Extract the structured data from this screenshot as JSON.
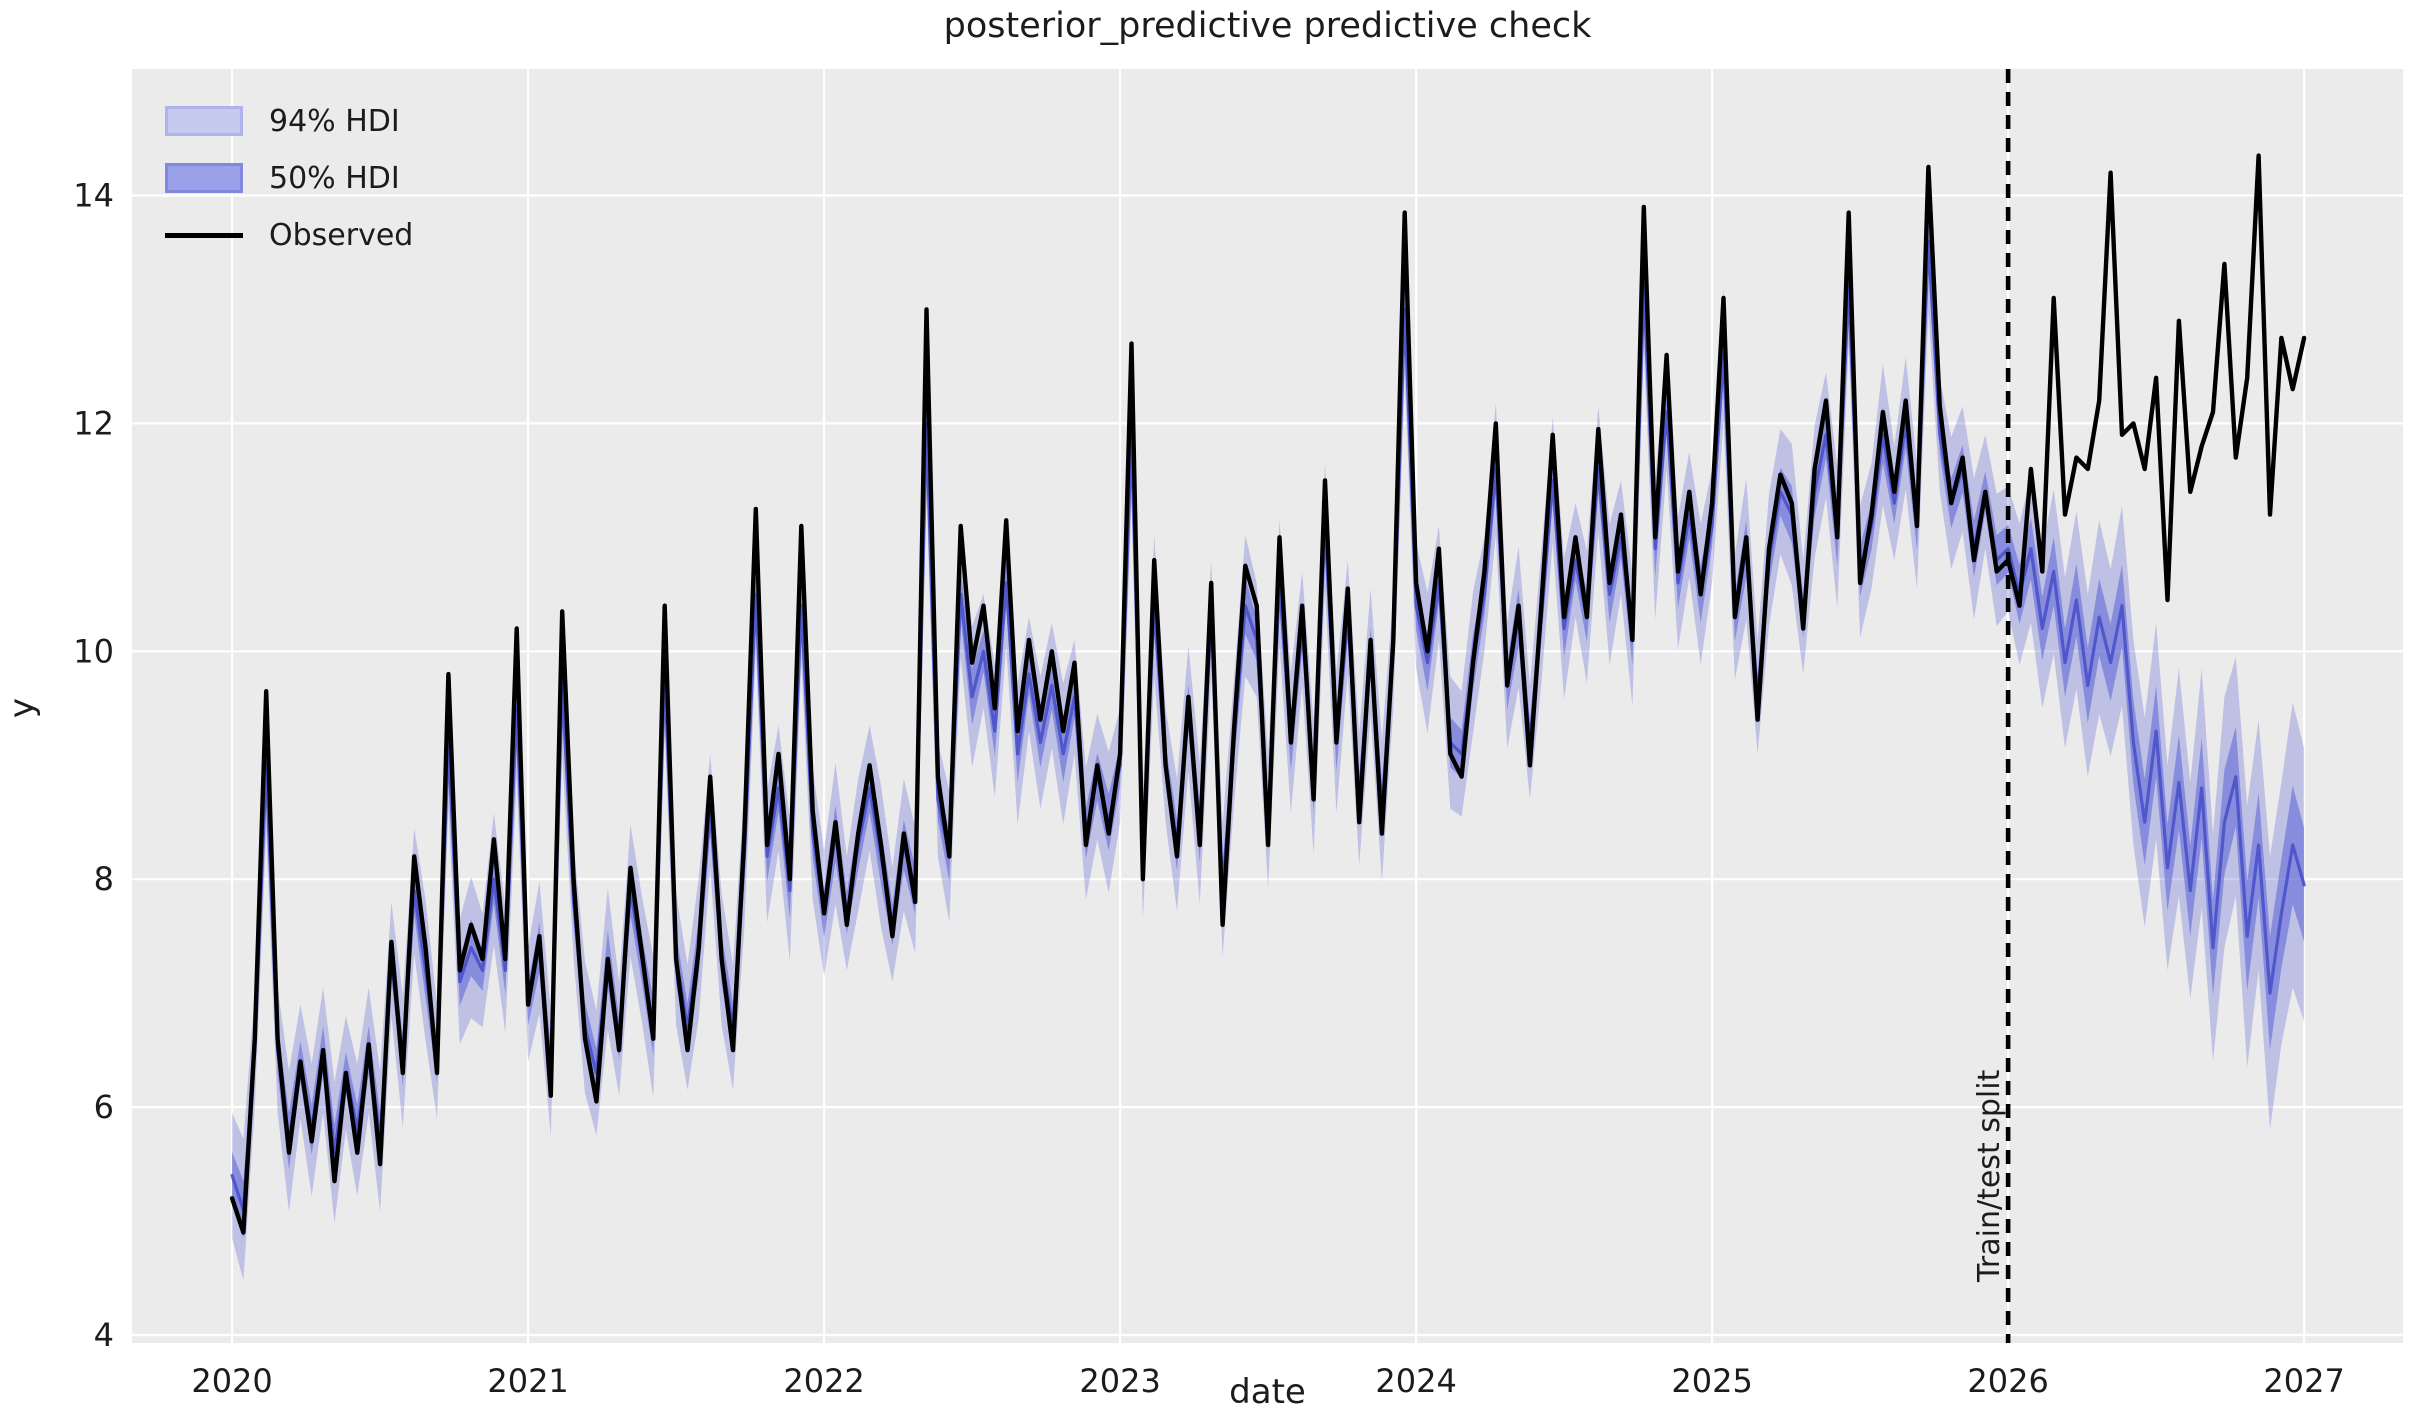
{
  "chart_data": {
    "type": "line",
    "title": "posterior_predictive predictive check",
    "xlabel": "date",
    "ylabel": "y",
    "x_ticks": [
      2020,
      2021,
      2022,
      2023,
      2024,
      2025,
      2026,
      2027
    ],
    "y_ticks": [
      4,
      6,
      8,
      10,
      12,
      14
    ],
    "xlim": [
      2019.662,
      2027.334
    ],
    "ylim": [
      3.93,
      15.11
    ],
    "grid": "white major gridlines on gray background",
    "legend_position": "upper left",
    "split_x": 2026.0,
    "split_label": "Train/test split",
    "x_start": 2020.0,
    "x_step": 0.0384615,
    "observed": [
      5.2,
      4.9,
      6.6,
      9.65,
      6.6,
      5.6,
      6.4,
      5.7,
      6.5,
      5.35,
      6.3,
      5.6,
      6.55,
      5.5,
      7.45,
      6.3,
      8.2,
      7.4,
      6.3,
      9.8,
      7.2,
      7.6,
      7.3,
      8.35,
      7.3,
      10.2,
      6.9,
      7.5,
      6.1,
      10.35,
      8.0,
      6.6,
      6.05,
      7.3,
      6.5,
      8.1,
      7.35,
      6.6,
      10.4,
      7.3,
      6.5,
      7.4,
      8.9,
      7.3,
      6.5,
      8.4,
      11.25,
      8.3,
      9.1,
      8.0,
      11.1,
      8.6,
      7.7,
      8.5,
      7.6,
      8.4,
      9.0,
      8.3,
      7.5,
      8.4,
      7.8,
      13.0,
      8.9,
      8.2,
      11.1,
      9.9,
      10.4,
      9.5,
      11.15,
      9.3,
      10.1,
      9.4,
      10.0,
      9.3,
      9.9,
      8.3,
      9.0,
      8.4,
      9.1,
      12.7,
      8.0,
      10.8,
      9.0,
      8.2,
      9.6,
      8.3,
      10.6,
      7.6,
      9.3,
      10.75,
      10.4,
      8.3,
      11.0,
      9.2,
      10.4,
      8.7,
      11.5,
      9.2,
      10.55,
      8.5,
      10.1,
      8.4,
      10.1,
      13.85,
      10.6,
      10.0,
      10.9,
      9.1,
      8.9,
      9.9,
      10.7,
      12.0,
      9.7,
      10.4,
      9.0,
      10.4,
      11.9,
      10.3,
      11.0,
      10.3,
      11.95,
      10.6,
      11.2,
      10.1,
      13.9,
      11.0,
      12.6,
      10.7,
      11.4,
      10.5,
      11.3,
      13.1,
      10.3,
      11.0,
      9.4,
      10.9,
      11.55,
      11.3,
      10.2,
      11.6,
      12.2,
      11.0,
      13.85,
      10.6,
      11.2,
      12.1,
      11.4,
      12.2,
      11.1,
      14.25,
      12.15,
      11.3,
      11.7,
      10.8,
      11.4,
      10.7,
      10.8,
      10.4,
      11.6,
      10.7,
      13.1,
      11.2,
      11.7,
      11.6,
      12.2,
      14.2,
      11.9,
      12.0,
      11.6,
      12.4,
      10.45,
      12.9,
      11.4,
      11.8,
      12.1,
      13.4,
      11.7,
      12.4,
      14.35,
      11.2,
      12.75,
      12.3,
      12.75
    ],
    "predicted_mean": [
      5.4,
      5.1,
      6.5,
      9.0,
      6.5,
      5.7,
      6.4,
      5.8,
      6.5,
      5.6,
      6.3,
      5.8,
      6.5,
      5.7,
      7.3,
      6.4,
      7.9,
      7.2,
      6.4,
      9.2,
      7.1,
      7.4,
      7.2,
      8.0,
      7.2,
      9.5,
      6.9,
      7.4,
      6.3,
      9.7,
      7.8,
      6.7,
      6.3,
      7.3,
      6.6,
      7.9,
      7.3,
      6.7,
      9.8,
      7.3,
      6.7,
      7.4,
      8.6,
      7.3,
      6.7,
      8.2,
      10.5,
      8.2,
      8.8,
      7.9,
      10.4,
      8.4,
      7.7,
      8.4,
      7.7,
      8.3,
      8.8,
      8.2,
      7.6,
      8.3,
      7.9,
      12.0,
      8.7,
      8.2,
      10.5,
      9.6,
      10.0,
      9.3,
      10.6,
      9.1,
      9.8,
      9.2,
      9.7,
      9.1,
      9.6,
      8.4,
      8.9,
      8.5,
      9.0,
      11.9,
      8.2,
      10.4,
      9.0,
      8.3,
      9.5,
      8.4,
      10.3,
      7.9,
      9.2,
      10.4,
      10.1,
      8.5,
      10.6,
      9.2,
      10.2,
      8.8,
      11.1,
      9.2,
      10.3,
      8.7,
      10.0,
      8.6,
      10.0,
      13.0,
      10.4,
      9.9,
      10.6,
      9.2,
      9.1,
      9.9,
      10.5,
      11.6,
      9.7,
      10.3,
      9.2,
      10.3,
      11.5,
      10.2,
      10.8,
      10.3,
      11.6,
      10.5,
      11.0,
      10.1,
      13.2,
      10.9,
      12.1,
      10.6,
      11.2,
      10.5,
      11.1,
      12.6,
      10.3,
      10.9,
      9.6,
      10.8,
      11.4,
      11.2,
      10.3,
      11.4,
      11.9,
      11.0,
      13.2,
      10.7,
      11.1,
      11.9,
      11.3,
      12.0,
      11.1,
      13.6,
      11.9,
      11.3,
      11.6,
      10.9,
      11.4,
      10.8,
      10.9,
      10.5,
      10.9,
      10.2,
      10.7,
      9.9,
      10.45,
      9.7,
      10.3,
      9.9,
      10.4,
      9.2,
      8.5,
      9.3,
      8.1,
      8.85,
      7.9,
      8.8,
      7.4,
      8.5,
      8.9,
      7.5,
      8.3,
      7.0,
      7.7,
      8.3,
      7.95
    ],
    "hdi94_half": [
      0.55,
      0.62,
      0.5,
      0.58,
      0.55,
      0.62,
      0.5,
      0.58,
      0.55,
      0.62,
      0.5,
      0.58,
      0.55,
      0.62,
      0.5,
      0.58,
      0.55,
      0.62,
      0.5,
      0.58,
      0.55,
      0.62,
      0.5,
      0.58,
      0.55,
      0.62,
      0.5,
      0.58,
      0.55,
      0.62,
      0.5,
      0.58,
      0.55,
      0.62,
      0.5,
      0.58,
      0.55,
      0.62,
      0.5,
      0.58,
      0.55,
      0.62,
      0.5,
      0.58,
      0.55,
      0.62,
      0.5,
      0.58,
      0.55,
      0.62,
      0.5,
      0.58,
      0.55,
      0.62,
      0.5,
      0.58,
      0.55,
      0.62,
      0.5,
      0.58,
      0.55,
      0.62,
      0.5,
      0.58,
      0.55,
      0.62,
      0.5,
      0.58,
      0.55,
      0.62,
      0.5,
      0.58,
      0.55,
      0.62,
      0.5,
      0.58,
      0.55,
      0.62,
      0.5,
      0.58,
      0.55,
      0.62,
      0.5,
      0.58,
      0.55,
      0.62,
      0.5,
      0.58,
      0.55,
      0.62,
      0.5,
      0.58,
      0.55,
      0.62,
      0.5,
      0.58,
      0.55,
      0.62,
      0.5,
      0.58,
      0.55,
      0.62,
      0.5,
      0.58,
      0.55,
      0.62,
      0.5,
      0.58,
      0.55,
      0.62,
      0.5,
      0.58,
      0.55,
      0.62,
      0.5,
      0.58,
      0.55,
      0.62,
      0.5,
      0.58,
      0.55,
      0.62,
      0.5,
      0.58,
      0.55,
      0.62,
      0.5,
      0.58,
      0.55,
      0.62,
      0.5,
      0.58,
      0.55,
      0.62,
      0.5,
      0.58,
      0.55,
      0.62,
      0.5,
      0.58,
      0.55,
      0.62,
      0.5,
      0.58,
      0.55,
      0.62,
      0.5,
      0.58,
      0.55,
      0.62,
      0.5,
      0.58,
      0.55,
      0.62,
      0.5,
      0.58,
      0.55,
      0.62,
      0.65,
      0.7,
      0.72,
      0.75,
      0.78,
      0.8,
      0.85,
      0.82,
      0.88,
      0.9,
      0.92,
      0.95,
      0.9,
      1.0,
      0.95,
      1.05,
      1.0,
      1.1,
      1.05,
      1.15,
      1.1,
      1.2,
      1.15,
      1.25,
      1.2
    ],
    "hdi50_half": [
      0.21,
      0.25,
      0.18,
      0.22,
      0.21,
      0.25,
      0.18,
      0.22,
      0.21,
      0.25,
      0.18,
      0.22,
      0.21,
      0.25,
      0.18,
      0.22,
      0.21,
      0.25,
      0.18,
      0.22,
      0.21,
      0.25,
      0.18,
      0.22,
      0.21,
      0.25,
      0.18,
      0.22,
      0.21,
      0.25,
      0.18,
      0.22,
      0.21,
      0.25,
      0.18,
      0.22,
      0.21,
      0.25,
      0.18,
      0.22,
      0.21,
      0.25,
      0.18,
      0.22,
      0.21,
      0.25,
      0.18,
      0.22,
      0.21,
      0.25,
      0.18,
      0.22,
      0.21,
      0.25,
      0.18,
      0.22,
      0.21,
      0.25,
      0.18,
      0.22,
      0.21,
      0.25,
      0.18,
      0.22,
      0.21,
      0.25,
      0.18,
      0.22,
      0.21,
      0.25,
      0.18,
      0.22,
      0.21,
      0.25,
      0.18,
      0.22,
      0.21,
      0.25,
      0.18,
      0.22,
      0.21,
      0.25,
      0.18,
      0.22,
      0.21,
      0.25,
      0.18,
      0.22,
      0.21,
      0.25,
      0.18,
      0.22,
      0.21,
      0.25,
      0.18,
      0.22,
      0.21,
      0.25,
      0.18,
      0.22,
      0.21,
      0.25,
      0.18,
      0.22,
      0.21,
      0.25,
      0.18,
      0.22,
      0.21,
      0.25,
      0.18,
      0.22,
      0.21,
      0.25,
      0.18,
      0.22,
      0.21,
      0.25,
      0.18,
      0.22,
      0.21,
      0.25,
      0.18,
      0.22,
      0.21,
      0.25,
      0.18,
      0.22,
      0.21,
      0.25,
      0.18,
      0.22,
      0.21,
      0.25,
      0.18,
      0.22,
      0.21,
      0.25,
      0.18,
      0.22,
      0.21,
      0.25,
      0.18,
      0.22,
      0.21,
      0.25,
      0.18,
      0.22,
      0.21,
      0.25,
      0.18,
      0.22,
      0.21,
      0.25,
      0.18,
      0.22,
      0.21,
      0.26,
      0.27,
      0.28,
      0.3,
      0.3,
      0.32,
      0.33,
      0.34,
      0.34,
      0.36,
      0.37,
      0.38,
      0.4,
      0.38,
      0.42,
      0.4,
      0.44,
      0.42,
      0.46,
      0.44,
      0.48,
      0.46,
      0.5,
      0.48,
      0.52,
      0.5
    ],
    "colors": {
      "axes_background": "#ebebeb",
      "grid": "#ffffff",
      "observed_line": "#000000",
      "mean_line": "rgba(74,82,200,0.92)",
      "hdi94_fill": "rgba(99,106,215,0.32)",
      "hdi50_fill": "rgba(99,106,215,0.60)",
      "split_line": "#000000",
      "text": "#1c1c1c"
    }
  },
  "legend": {
    "items": [
      {
        "label": "94% HDI",
        "kind": "patch-light"
      },
      {
        "label": "50% HDI",
        "kind": "patch-dark"
      },
      {
        "label": "Observed",
        "kind": "black-line"
      }
    ]
  }
}
